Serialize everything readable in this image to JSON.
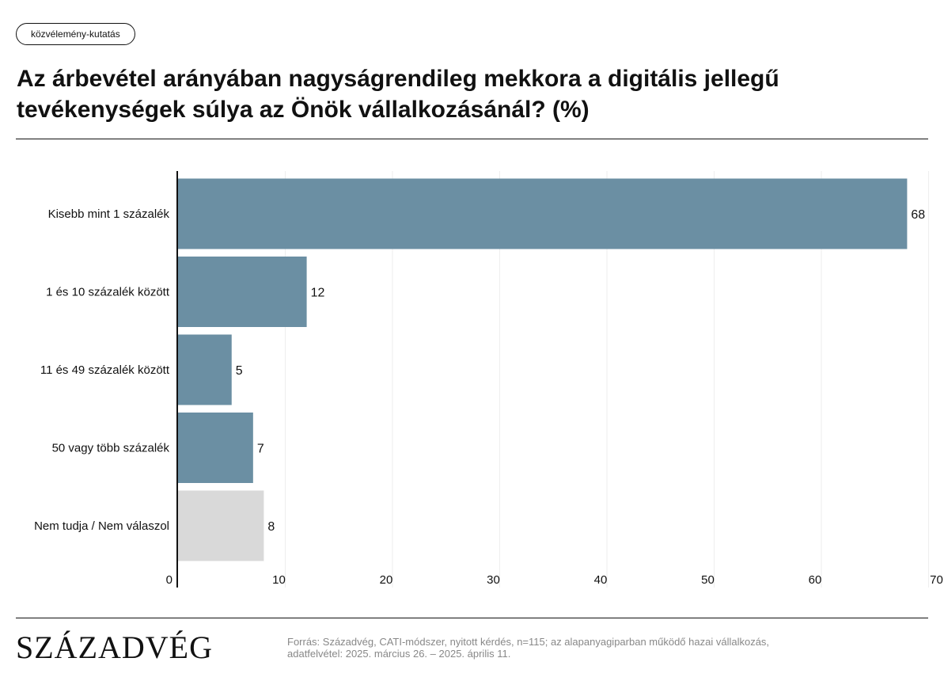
{
  "header": {
    "badge": "közvélemény-kutatás",
    "title": "Az árbevétel arányában nagyságrendileg mekkora a digitális jellegű tevékenységek súlya az Önök vállalkozásánál? (%)"
  },
  "chart_data": {
    "type": "bar",
    "orientation": "horizontal",
    "categories": [
      "Kisebb mint 1 százalék",
      "1 és 10 százalék között",
      "11 és 49 százalék között",
      "50 vagy több százalék",
      "Nem tudja / Nem válaszol"
    ],
    "values": [
      68,
      12,
      5,
      7,
      8
    ],
    "value_labels": [
      "68",
      "12",
      "5",
      "7",
      "8"
    ],
    "xlim": [
      0,
      70
    ],
    "x_ticks": [
      0,
      10,
      20,
      30,
      40,
      50,
      60,
      70
    ],
    "x_tick_labels": [
      "0",
      "10",
      "20",
      "30",
      "40",
      "50",
      "60",
      "70"
    ],
    "grid": true,
    "colors": {
      "primary": "#6b8fa3",
      "no_answer": "#d9d9d9",
      "grid": "#eeeeee",
      "axis": "#111111"
    }
  },
  "footer": {
    "logo": "SZÁZADVÉG",
    "source_line1": "Forrás: Századvég, CATI-módszer, nyitott kérdés, n=115; az alapanyagiparban működő hazai vállalkozás,",
    "source_line2": "adatfelvétel: 2025. március 26. – 2025. április 11."
  }
}
